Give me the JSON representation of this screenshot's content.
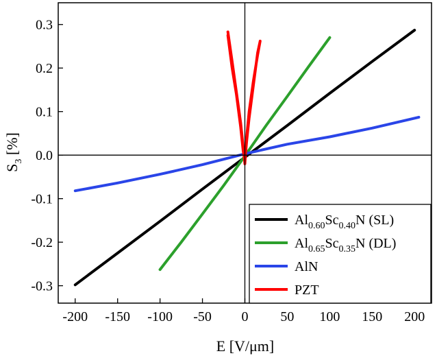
{
  "chart_data": {
    "type": "line",
    "xlabel": "E [V/μm]",
    "ylabel_main": "S",
    "ylabel_sub": "3",
    "ylabel_rest": " [%]",
    "xlim": [
      -220,
      220
    ],
    "ylim": [
      -0.34,
      0.35
    ],
    "xticks": [
      -200,
      -150,
      -100,
      -50,
      0,
      50,
      100,
      150,
      200
    ],
    "xtick_labels": [
      "-200",
      "-150",
      "-100",
      "-50",
      "0",
      "50",
      "100",
      "150",
      "200"
    ],
    "yticks": [
      -0.3,
      -0.2,
      -0.1,
      0.0,
      0.1,
      0.2,
      0.3
    ],
    "ytick_labels": [
      "-0.3",
      "-0.2",
      "-0.1",
      "0.0",
      "0.1",
      "0.2",
      "0.3"
    ],
    "series": [
      {
        "name": "Al0.60Sc0.40N (SL)",
        "color": "#000000",
        "x": [
          -200,
          -150,
          -100,
          -50,
          0,
          50,
          100,
          150,
          200
        ],
        "y": [
          -0.298,
          -0.225,
          -0.152,
          -0.078,
          -0.005,
          0.068,
          0.142,
          0.215,
          0.287
        ]
      },
      {
        "name": "Al0.65Sc0.35N (DL)",
        "color": "#2ca02c",
        "x": [
          -100,
          -75,
          -50,
          -25,
          0,
          25,
          50,
          75,
          100
        ],
        "y": [
          -0.263,
          -0.2,
          -0.135,
          -0.07,
          -0.002,
          0.068,
          0.135,
          0.203,
          0.27
        ]
      },
      {
        "name": "AlN",
        "color": "#2a45e8",
        "x": [
          -200,
          -150,
          -100,
          -50,
          0,
          50,
          100,
          150,
          205
        ],
        "y": [
          -0.082,
          -0.064,
          -0.044,
          -0.022,
          0.003,
          0.025,
          0.042,
          0.062,
          0.087
        ]
      },
      {
        "name": "PZT",
        "color": "#ff0000",
        "x": [
          -20,
          -15,
          -10,
          -5,
          -2,
          0,
          2,
          5,
          10,
          15,
          18,
          15,
          10,
          5,
          2,
          0,
          -2,
          -5,
          -10,
          -15,
          -20
        ],
        "y": [
          0.283,
          0.215,
          0.145,
          0.075,
          0.02,
          -0.02,
          0.04,
          0.1,
          0.17,
          0.23,
          0.262,
          0.235,
          0.16,
          0.085,
          0.03,
          -0.015,
          0.01,
          0.065,
          0.14,
          0.2,
          0.275
        ]
      }
    ],
    "legend": {
      "position": "bottom-right",
      "entries": [
        {
          "base": "Al",
          "sub1": "0.60",
          "mid": "Sc",
          "sub2": "0.40",
          "tail": "N (SL)",
          "color": "#000000"
        },
        {
          "base": "Al",
          "sub1": "0.65",
          "mid": "Sc",
          "sub2": "0.35",
          "tail": "N (DL)",
          "color": "#2ca02c"
        },
        {
          "label": "AlN",
          "color": "#2a45e8"
        },
        {
          "label": "PZT",
          "color": "#ff0000"
        }
      ]
    }
  }
}
